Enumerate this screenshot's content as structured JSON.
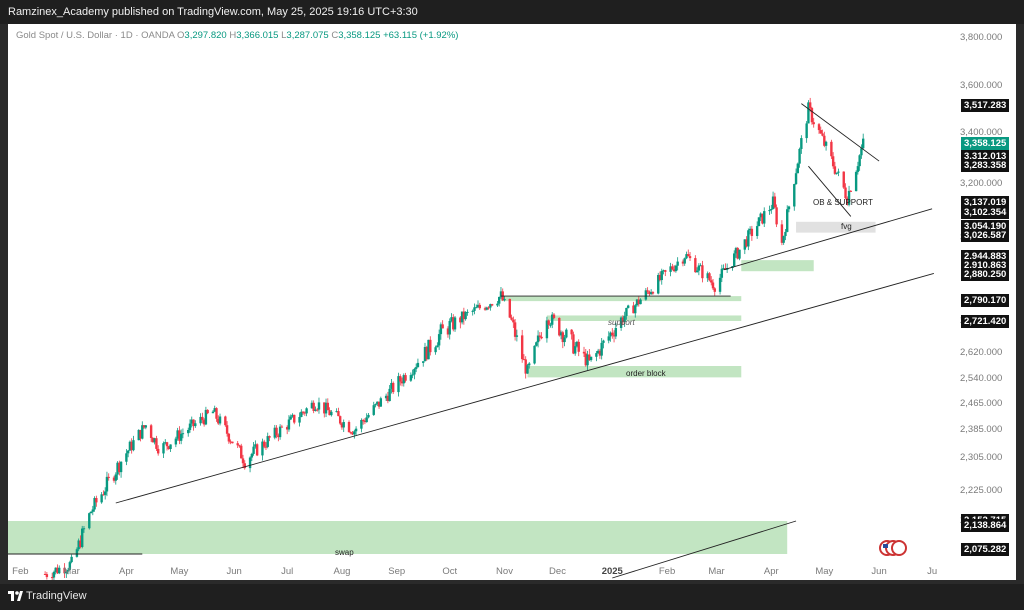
{
  "header": {
    "publisher_line": "Ramzinex_Academy published on TradingView.com, May 25, 2025 19:16 UTC+3:30"
  },
  "legend": {
    "symbol": "Gold Spot / U.S. Dollar · 1D · OANDA",
    "open_label": "O",
    "open": "3,297.820",
    "high_label": "H",
    "high": "3,366.015",
    "low_label": "L",
    "low": "3,287.075",
    "close_label": "C",
    "close": "3,358.125",
    "change": "+63.115 (+1.92%)"
  },
  "colors": {
    "up": "#089981",
    "down": "#f23645",
    "zone": "#b7e1b7",
    "fvg": "#dcdcdc"
  },
  "y_ticks": [
    "3,800.000",
    "3,600.000",
    "3,400.000",
    "3,200.000",
    "3,000.000",
    "2,700.000",
    "2,620.000",
    "2,540.000",
    "2,465.000",
    "2,385.000",
    "2,305.000",
    "2,225.000",
    "2,150.000"
  ],
  "price_labels": [
    {
      "text": "3,517.283",
      "style": "dark"
    },
    {
      "text": "3,358.125",
      "style": "green"
    },
    {
      "text": "3,312.013",
      "style": "dark"
    },
    {
      "text": "3,283.358",
      "style": "dark"
    },
    {
      "text": "3,137.019",
      "style": "dark"
    },
    {
      "text": "3,102.354",
      "style": "dark"
    },
    {
      "text": "3,054.190",
      "style": "dark"
    },
    {
      "text": "3,026.587",
      "style": "dark"
    },
    {
      "text": "2,944.883",
      "style": "dark"
    },
    {
      "text": "2,910.863",
      "style": "dark"
    },
    {
      "text": "2,880.250",
      "style": "dark"
    },
    {
      "text": "2,790.170",
      "style": "dark"
    },
    {
      "text": "2,721.420",
      "style": "dark"
    },
    {
      "text": "2,152.715",
      "style": "dark"
    },
    {
      "text": "2,138.864",
      "style": "dark"
    },
    {
      "text": "2,075.282",
      "style": "dark"
    }
  ],
  "x_labels": [
    "Feb",
    "Mar",
    "Apr",
    "May",
    "Jun",
    "Jul",
    "Aug",
    "Sep",
    "Oct",
    "Nov",
    "Dec",
    "2025",
    "Feb",
    "Mar",
    "Apr",
    "May",
    "Jun",
    "Ju"
  ],
  "annotations": {
    "ob_support": "OB & SUPPORT",
    "fvg": "fvg",
    "support": "support",
    "order_block": "order block",
    "swap": "swap"
  },
  "footer": {
    "brand": "TradingView"
  },
  "chart_data": {
    "type": "candlestick",
    "title": "Gold Spot / U.S. Dollar · 1D · OANDA",
    "ylim": [
      2075,
      3800
    ],
    "y_scale": "log",
    "grid": false,
    "x_range": [
      "2024-01-25",
      "2025-07-10"
    ],
    "trend_waypoints": [
      {
        "date": "2024-02-15",
        "price": 2025
      },
      {
        "date": "2024-03-01",
        "price": 2050
      },
      {
        "date": "2024-03-12",
        "price": 2175
      },
      {
        "date": "2024-04-12",
        "price": 2400
      },
      {
        "date": "2024-04-20",
        "price": 2330
      },
      {
        "date": "2024-05-20",
        "price": 2440
      },
      {
        "date": "2024-06-07",
        "price": 2300
      },
      {
        "date": "2024-07-17",
        "price": 2470
      },
      {
        "date": "2024-08-08",
        "price": 2385
      },
      {
        "date": "2024-09-26",
        "price": 2670
      },
      {
        "date": "2024-10-30",
        "price": 2790
      },
      {
        "date": "2024-11-14",
        "price": 2560
      },
      {
        "date": "2024-11-25",
        "price": 2720
      },
      {
        "date": "2024-12-19",
        "price": 2590
      },
      {
        "date": "2025-02-11",
        "price": 2940
      },
      {
        "date": "2025-02-28",
        "price": 2830
      },
      {
        "date": "2025-04-02",
        "price": 3130
      },
      {
        "date": "2025-04-07",
        "price": 2980
      },
      {
        "date": "2025-04-22",
        "price": 3500
      },
      {
        "date": "2025-05-14",
        "price": 3150
      },
      {
        "date": "2025-05-23",
        "price": 3358
      }
    ],
    "zones": [
      {
        "label": "swap",
        "from": "2024-01-25",
        "to": "2025-04-10",
        "low": 2075,
        "high": 2150
      },
      {
        "label": "order block",
        "from": "2024-11-14",
        "to": "2025-03-15",
        "low": 2545,
        "high": 2580
      },
      {
        "label": "support",
        "from": "2024-11-25",
        "to": "2025-03-15",
        "low": 2700,
        "high": 2720
      },
      {
        "label": "",
        "from": "2024-10-30",
        "to": "2025-03-15",
        "low": 2775,
        "high": 2790
      },
      {
        "label": "",
        "from": "2025-03-15",
        "to": "2025-04-25",
        "low": 2880,
        "high": 2920
      },
      {
        "label": "fvg",
        "from": "2025-04-15",
        "to": "2025-05-30",
        "low": 3020,
        "high": 3060
      }
    ],
    "last_close": 3358.125
  }
}
